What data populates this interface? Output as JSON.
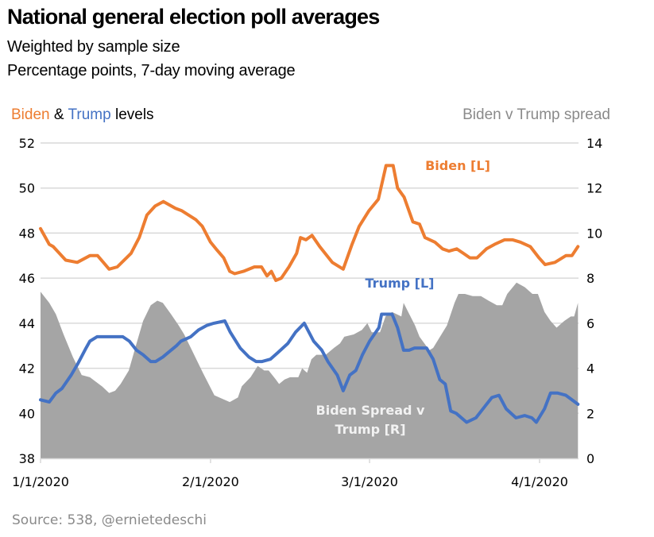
{
  "header": {
    "title": "National general election poll averages",
    "subtitle_1": "Weighted by sample size",
    "subtitle_2": "Percentage points, 7-day moving average"
  },
  "axis_titles": {
    "left_part1": "Biden",
    "left_part2": " & ",
    "left_part3": "Trump",
    "left_part4": " levels",
    "right": "Biden v Trump spread"
  },
  "footer": {
    "source": "Source: 538, @ernietedeschi"
  },
  "colors": {
    "biden": "#ed7d31",
    "trump": "#4472c4",
    "spread": "#a5a5a5",
    "grid": "#d9d9d9"
  },
  "chart_data": {
    "type": "line",
    "title": "National general election poll averages",
    "subtitle": "Weighted by sample size; Percentage points, 7-day moving average",
    "x_unit": "days since 1/1/2020",
    "x_range": [
      0,
      98
    ],
    "x_ticks": [
      {
        "day": 0,
        "label": "1/1/2020"
      },
      {
        "day": 31,
        "label": "2/1/2020"
      },
      {
        "day": 60,
        "label": "3/1/2020"
      },
      {
        "day": 91,
        "label": "4/1/2020"
      }
    ],
    "y_left": {
      "label": "Biden & Trump levels",
      "range": [
        38,
        52
      ],
      "ticks": [
        38,
        40,
        42,
        44,
        46,
        48,
        50,
        52
      ]
    },
    "y_right": {
      "label": "Biden v Trump spread",
      "range": [
        0,
        14
      ],
      "ticks": [
        0,
        2,
        4,
        6,
        8,
        10,
        12,
        14
      ]
    },
    "grid": true,
    "series": [
      {
        "name": "Biden [L]",
        "axis": "left",
        "type": "line",
        "annotation": "Biden [L]",
        "points": [
          [
            0,
            48.2
          ],
          [
            1.6,
            47.5
          ],
          [
            2.3,
            47.4
          ],
          [
            4.6,
            46.8
          ],
          [
            6.7,
            46.7
          ],
          [
            9,
            47.0
          ],
          [
            10.4,
            47.0
          ],
          [
            12.5,
            46.4
          ],
          [
            14,
            46.5
          ],
          [
            16.5,
            47.1
          ],
          [
            18,
            47.8
          ],
          [
            19.4,
            48.8
          ],
          [
            20.9,
            49.2
          ],
          [
            22.4,
            49.4
          ],
          [
            24.6,
            49.1
          ],
          [
            25.7,
            49.0
          ],
          [
            28.3,
            48.6
          ],
          [
            29.5,
            48.3
          ],
          [
            31,
            47.6
          ],
          [
            32,
            47.3
          ],
          [
            33.4,
            46.9
          ],
          [
            34.5,
            46.3
          ],
          [
            35.4,
            46.2
          ],
          [
            37,
            46.3
          ],
          [
            39.0,
            46.5
          ],
          [
            40.3,
            46.5
          ],
          [
            41.3,
            46.1
          ],
          [
            42.1,
            46.3
          ],
          [
            42.9,
            45.9
          ],
          [
            43.9,
            46.0
          ],
          [
            45.3,
            46.5
          ],
          [
            46.7,
            47.1
          ],
          [
            47.4,
            47.8
          ],
          [
            48.4,
            47.7
          ],
          [
            49.5,
            47.9
          ],
          [
            50.9,
            47.4
          ],
          [
            53.2,
            46.7
          ],
          [
            55.2,
            46.4
          ],
          [
            56.8,
            47.5
          ],
          [
            58.1,
            48.3
          ],
          [
            59.9,
            49.0
          ],
          [
            61.6,
            49.5
          ],
          [
            63.0,
            51.0
          ],
          [
            64.3,
            51.0
          ],
          [
            65.1,
            50.0
          ],
          [
            66.3,
            49.6
          ],
          [
            67.9,
            48.5
          ],
          [
            69.1,
            48.4
          ],
          [
            70.1,
            47.8
          ],
          [
            71.9,
            47.6
          ],
          [
            73.3,
            47.3
          ],
          [
            74.5,
            47.2
          ],
          [
            75.9,
            47.3
          ],
          [
            77.1,
            47.1
          ],
          [
            78.3,
            46.9
          ],
          [
            79.6,
            46.9
          ],
          [
            81.3,
            47.3
          ],
          [
            82.8,
            47.5
          ],
          [
            84.6,
            47.7
          ],
          [
            86.1,
            47.7
          ],
          [
            87.5,
            47.6
          ],
          [
            89.3,
            47.4
          ],
          [
            90.9,
            46.9
          ],
          [
            92.0,
            46.6
          ],
          [
            93.8,
            46.7
          ],
          [
            95.8,
            47.0
          ],
          [
            96.9,
            47.0
          ],
          [
            98,
            47.4
          ]
        ]
      },
      {
        "name": "Trump [L]",
        "axis": "left",
        "type": "line",
        "annotation": "Trump [L]",
        "points": [
          [
            0,
            40.6
          ],
          [
            1.6,
            40.5
          ],
          [
            2.8,
            40.9
          ],
          [
            3.9,
            41.1
          ],
          [
            5.6,
            41.7
          ],
          [
            6.8,
            42.2
          ],
          [
            8.3,
            42.9
          ],
          [
            9,
            43.2
          ],
          [
            10.3,
            43.4
          ],
          [
            11.6,
            43.4
          ],
          [
            12.5,
            43.4
          ],
          [
            13.8,
            43.4
          ],
          [
            15,
            43.4
          ],
          [
            16.2,
            43.2
          ],
          [
            17.5,
            42.8
          ],
          [
            18.7,
            42.6
          ],
          [
            20.1,
            42.3
          ],
          [
            21,
            42.3
          ],
          [
            22.3,
            42.5
          ],
          [
            23.3,
            42.7
          ],
          [
            24.8,
            43.0
          ],
          [
            25.6,
            43.2
          ],
          [
            27.4,
            43.4
          ],
          [
            28.8,
            43.7
          ],
          [
            30.3,
            43.9
          ],
          [
            31.6,
            44.0
          ],
          [
            33.6,
            44.1
          ],
          [
            34.6,
            43.6
          ],
          [
            36.4,
            42.9
          ],
          [
            38,
            42.5
          ],
          [
            39.3,
            42.3
          ],
          [
            40.4,
            42.3
          ],
          [
            41.9,
            42.4
          ],
          [
            43.3,
            42.7
          ],
          [
            45.1,
            43.1
          ],
          [
            46.5,
            43.6
          ],
          [
            48.1,
            44.0
          ],
          [
            49.8,
            43.2
          ],
          [
            51.3,
            42.8
          ],
          [
            52.4,
            42.3
          ],
          [
            54.1,
            41.7
          ],
          [
            55.2,
            41.0
          ],
          [
            56.4,
            41.7
          ],
          [
            57.5,
            41.9
          ],
          [
            58.7,
            42.6
          ],
          [
            60,
            43.2
          ],
          [
            61.7,
            43.8
          ],
          [
            62.2,
            44.4
          ],
          [
            64.1,
            44.4
          ],
          [
            65.1,
            43.8
          ],
          [
            66.2,
            42.8
          ],
          [
            67.2,
            42.8
          ],
          [
            68.2,
            42.9
          ],
          [
            70.4,
            42.9
          ],
          [
            71.6,
            42.4
          ],
          [
            72.8,
            41.5
          ],
          [
            73.8,
            41.3
          ],
          [
            74.8,
            40.1
          ],
          [
            75.8,
            40.0
          ],
          [
            77.7,
            39.6
          ],
          [
            79.4,
            39.8
          ],
          [
            81,
            40.3
          ],
          [
            82.3,
            40.7
          ],
          [
            83.6,
            40.8
          ],
          [
            84.9,
            40.2
          ],
          [
            86.7,
            39.8
          ],
          [
            88.3,
            39.9
          ],
          [
            89.6,
            39.8
          ],
          [
            90.4,
            39.6
          ],
          [
            91.9,
            40.2
          ],
          [
            93,
            40.9
          ],
          [
            94.3,
            40.9
          ],
          [
            95.8,
            40.8
          ],
          [
            98,
            40.4
          ]
        ]
      },
      {
        "name": "Biden Spread v Trump [R]",
        "axis": "right",
        "type": "area",
        "annotation": "Biden Spread v Trump [R]",
        "points": [
          [
            0,
            7.4
          ],
          [
            1.6,
            6.9
          ],
          [
            2.8,
            6.4
          ],
          [
            4.2,
            5.5
          ],
          [
            5.9,
            4.5
          ],
          [
            7.5,
            3.7
          ],
          [
            9,
            3.6
          ],
          [
            10.1,
            3.4
          ],
          [
            11.2,
            3.2
          ],
          [
            12.5,
            2.9
          ],
          [
            13.6,
            3.0
          ],
          [
            14.6,
            3.3
          ],
          [
            16.1,
            3.9
          ],
          [
            17.5,
            5.1
          ],
          [
            18.7,
            6.1
          ],
          [
            20.1,
            6.8
          ],
          [
            21.3,
            7.0
          ],
          [
            22.3,
            6.9
          ],
          [
            23.8,
            6.4
          ],
          [
            25.2,
            5.9
          ],
          [
            26.2,
            5.5
          ],
          [
            27.4,
            4.9
          ],
          [
            29.6,
            3.8
          ],
          [
            31.7,
            2.8
          ],
          [
            34.5,
            2.5
          ],
          [
            36,
            2.7
          ],
          [
            36.7,
            3.2
          ],
          [
            38.3,
            3.6
          ],
          [
            39.6,
            4.1
          ],
          [
            40.8,
            3.9
          ],
          [
            41.6,
            3.9
          ],
          [
            42.9,
            3.5
          ],
          [
            43.5,
            3.3
          ],
          [
            44.5,
            3.5
          ],
          [
            45.5,
            3.6
          ],
          [
            47,
            3.6
          ],
          [
            47.7,
            4.0
          ],
          [
            48.6,
            3.8
          ],
          [
            49.4,
            4.4
          ],
          [
            50.3,
            4.6
          ],
          [
            51.3,
            4.6
          ],
          [
            52,
            4.6
          ],
          [
            53.5,
            4.9
          ],
          [
            54.6,
            5.1
          ],
          [
            55.4,
            5.4
          ],
          [
            57.1,
            5.5
          ],
          [
            58.6,
            5.7
          ],
          [
            59.6,
            6.0
          ],
          [
            60.4,
            5.6
          ],
          [
            61.9,
            5.6
          ],
          [
            62.9,
            6.3
          ],
          [
            64.1,
            6.5
          ],
          [
            65.8,
            6.3
          ],
          [
            66.2,
            6.9
          ],
          [
            68.3,
            5.9
          ],
          [
            69.1,
            5.4
          ],
          [
            70.9,
            4.8
          ],
          [
            71.6,
            4.9
          ],
          [
            73.1,
            5.5
          ],
          [
            74.1,
            5.9
          ],
          [
            75.5,
            6.9
          ],
          [
            76.2,
            7.3
          ],
          [
            77.4,
            7.3
          ],
          [
            78.8,
            7.2
          ],
          [
            80.3,
            7.2
          ],
          [
            81.7,
            7.0
          ],
          [
            83.2,
            6.8
          ],
          [
            84.2,
            6.8
          ],
          [
            85.1,
            7.3
          ],
          [
            86.8,
            7.8
          ],
          [
            88.3,
            7.6
          ],
          [
            89.7,
            7.3
          ],
          [
            90.7,
            7.3
          ],
          [
            91.9,
            6.5
          ],
          [
            93.0,
            6.1
          ],
          [
            94.1,
            5.8
          ],
          [
            95.5,
            6.1
          ],
          [
            96.7,
            6.3
          ],
          [
            97.3,
            6.3
          ],
          [
            98,
            6.9
          ]
        ]
      }
    ],
    "annotations": [
      "Biden [L]",
      "Trump [L]",
      "Biden Spread v Trump [R]"
    ]
  }
}
